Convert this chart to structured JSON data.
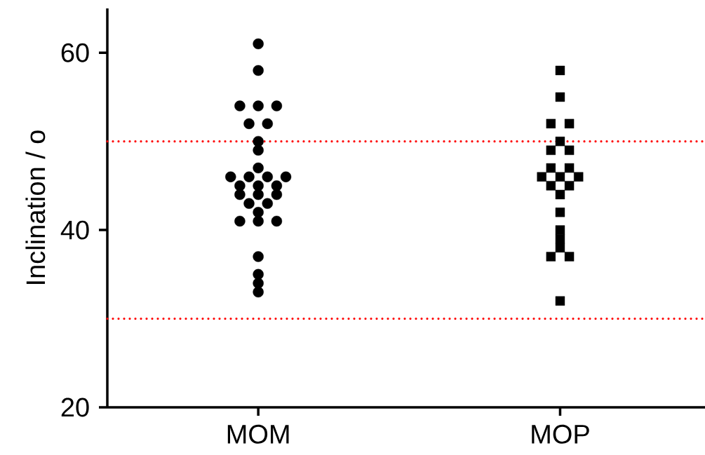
{
  "chart_data": {
    "type": "scatter",
    "ylabel": "Inclination / o",
    "categories": [
      "MOM",
      "MOP"
    ],
    "ylim": [
      20,
      65
    ],
    "yticks": [
      20,
      40,
      60
    ],
    "grid": false,
    "series": [
      {
        "color": "#000000",
        "marker": "circle",
        "x": [
          "MOM",
          "MOM",
          "MOM",
          "MOM",
          "MOM",
          "MOM",
          "MOM",
          "MOM",
          "MOM",
          "MOM",
          "MOM",
          "MOM",
          "MOM",
          "MOM",
          "MOM",
          "MOM",
          "MOM",
          "MOM",
          "MOM",
          "MOM",
          "MOM",
          "MOM",
          "MOM",
          "MOM",
          "MOM",
          "MOM",
          "MOM",
          "MOM",
          "MOM",
          "MOM"
        ],
        "values": [
          61,
          58,
          54,
          54,
          54,
          52,
          52,
          50,
          49,
          47,
          46,
          46,
          46,
          46,
          45,
          45,
          45,
          44,
          44,
          44,
          43,
          43,
          42,
          41,
          41,
          41,
          37,
          35,
          34,
          33
        ]
      },
      {
        "color": "#000000",
        "marker": "square",
        "x": [
          "MOP",
          "MOP",
          "MOP",
          "MOP",
          "MOP",
          "MOP",
          "MOP",
          "MOP",
          "MOP",
          "MOP",
          "MOP",
          "MOP",
          "MOP",
          "MOP",
          "MOP",
          "MOP",
          "MOP",
          "MOP",
          "MOP",
          "MOP",
          "MOP",
          "MOP"
        ],
        "values": [
          58,
          55,
          52,
          52,
          50,
          49,
          49,
          47,
          47,
          46,
          46,
          46,
          45,
          45,
          44,
          42,
          40,
          39,
          38,
          37,
          37,
          32
        ]
      }
    ],
    "ref_lines": [
      {
        "axis": "y",
        "value": 50,
        "color": "#ff0000",
        "line_style": "dotted"
      },
      {
        "axis": "y",
        "value": 30,
        "color": "#ff0000",
        "line_style": "dotted"
      }
    ]
  }
}
